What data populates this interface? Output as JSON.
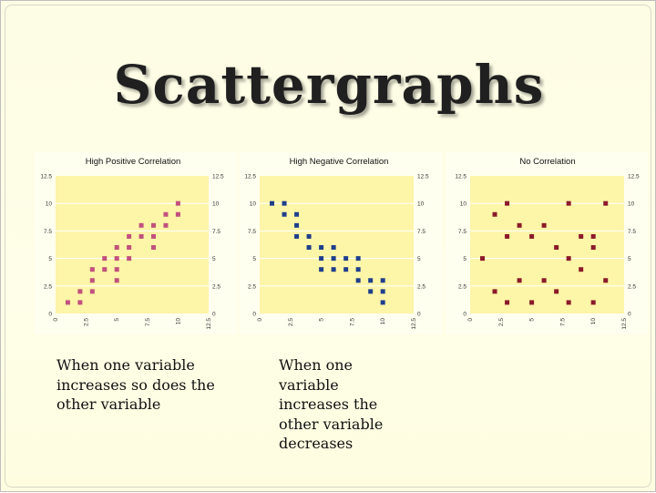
{
  "slide_title": "Scattergraphs",
  "captions": {
    "left": "When one variable increases so does the other variable",
    "right": "When one variable increases the other variable decreases"
  },
  "colors": {
    "plot_background": "#fdf5a8",
    "panel_background": "#fffff0",
    "gridline": "#ffffff",
    "positive_marker": "#c2507e",
    "negative_marker": "#1f3f8c",
    "none_marker": "#8b1a2a"
  },
  "chart_data": [
    {
      "type": "scatter",
      "title": "High Positive Correlation",
      "xlim": [
        0,
        12.5
      ],
      "ylim": [
        0,
        12.5
      ],
      "x_ticks": [
        "0",
        "2.5",
        "5",
        "7.5",
        "10",
        "12.5"
      ],
      "y_ticks": [
        "12.5",
        "10",
        "7.5",
        "5",
        "2.5",
        "0"
      ],
      "y_ticks_right": [
        "12.5",
        "10",
        "7.5",
        "5",
        "2.5",
        "0"
      ],
      "grid": true,
      "points": [
        [
          1,
          1
        ],
        [
          2,
          1
        ],
        [
          2,
          2
        ],
        [
          3,
          2
        ],
        [
          3,
          3
        ],
        [
          3,
          4
        ],
        [
          4,
          4
        ],
        [
          4,
          5
        ],
        [
          5,
          3
        ],
        [
          5,
          4
        ],
        [
          5,
          5
        ],
        [
          5,
          6
        ],
        [
          6,
          5
        ],
        [
          6,
          6
        ],
        [
          6,
          7
        ],
        [
          7,
          7
        ],
        [
          7,
          8
        ],
        [
          8,
          6
        ],
        [
          8,
          7
        ],
        [
          8,
          8
        ],
        [
          9,
          8
        ],
        [
          9,
          9
        ],
        [
          10,
          9
        ],
        [
          10,
          10
        ]
      ]
    },
    {
      "type": "scatter",
      "title": "High Negative Correlation",
      "xlim": [
        0,
        12.5
      ],
      "ylim": [
        0,
        12.5
      ],
      "x_ticks": [
        "0",
        "2.5",
        "5",
        "7.5",
        "10",
        "12.5"
      ],
      "y_ticks": [
        "12.5",
        "10",
        "7.5",
        "5",
        "2.5",
        "0"
      ],
      "y_ticks_right": [
        "12.5",
        "10",
        "7.5",
        "5",
        "2.5",
        "0"
      ],
      "grid": true,
      "points": [
        [
          1,
          10
        ],
        [
          2,
          10
        ],
        [
          2,
          9
        ],
        [
          3,
          9
        ],
        [
          3,
          8
        ],
        [
          3,
          7
        ],
        [
          4,
          7
        ],
        [
          4,
          6
        ],
        [
          5,
          6
        ],
        [
          5,
          5
        ],
        [
          5,
          4
        ],
        [
          6,
          6
        ],
        [
          6,
          5
        ],
        [
          6,
          4
        ],
        [
          7,
          5
        ],
        [
          7,
          4
        ],
        [
          8,
          5
        ],
        [
          8,
          4
        ],
        [
          8,
          3
        ],
        [
          9,
          3
        ],
        [
          9,
          2
        ],
        [
          10,
          3
        ],
        [
          10,
          2
        ],
        [
          10,
          1
        ]
      ]
    },
    {
      "type": "scatter",
      "title": "No Correlation",
      "xlim": [
        0,
        12.5
      ],
      "ylim": [
        0,
        12.5
      ],
      "x_ticks": [
        "0",
        "2.5",
        "5",
        "7.5",
        "10",
        "12.5"
      ],
      "y_ticks": [
        "12.5",
        "10",
        "7.5",
        "5",
        "2.5",
        "0"
      ],
      "y_ticks_right": [
        "12.5",
        "10",
        "7.5",
        "5",
        "2.5",
        "0"
      ],
      "grid": true,
      "points": [
        [
          1,
          5
        ],
        [
          2,
          9
        ],
        [
          2,
          2
        ],
        [
          3,
          10
        ],
        [
          3,
          7
        ],
        [
          3,
          1
        ],
        [
          4,
          8
        ],
        [
          4,
          3
        ],
        [
          5,
          7
        ],
        [
          5,
          1
        ],
        [
          6,
          8
        ],
        [
          6,
          3
        ],
        [
          7,
          6
        ],
        [
          7,
          2
        ],
        [
          8,
          10
        ],
        [
          8,
          5
        ],
        [
          8,
          1
        ],
        [
          9,
          4
        ],
        [
          9,
          7
        ],
        [
          10,
          1
        ],
        [
          10,
          6
        ],
        [
          10,
          7
        ],
        [
          11,
          3
        ],
        [
          11,
          10
        ]
      ]
    }
  ]
}
